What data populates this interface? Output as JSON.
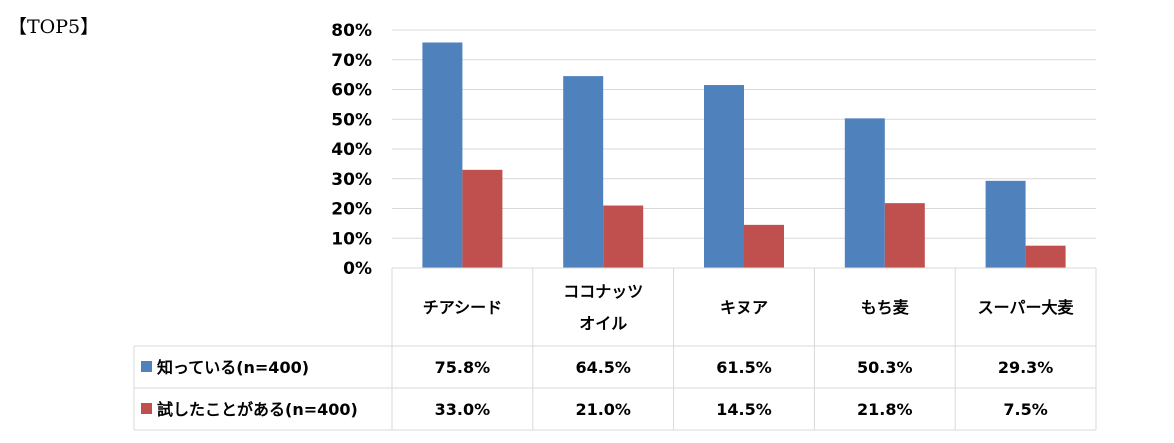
{
  "heading": "【TOP5】",
  "chart_data": {
    "type": "bar",
    "categories": [
      "チアシード",
      "ココナッツオイル",
      "キヌア",
      "もち麦",
      "スーパー大麦"
    ],
    "category_lines": [
      [
        "チアシード"
      ],
      [
        "ココナッツ",
        "オイル"
      ],
      [
        "キヌア"
      ],
      [
        "もち麦"
      ],
      [
        "スーパー大麦"
      ]
    ],
    "series": [
      {
        "name": "知っている(n=400)",
        "color": "#4F81BD",
        "values": [
          75.8,
          64.5,
          61.5,
          50.3,
          29.3
        ],
        "labels": [
          "75.8%",
          "64.5%",
          "61.5%",
          "50.3%",
          "29.3%"
        ]
      },
      {
        "name": "試したことがある(n=400)",
        "color": "#C0504D",
        "values": [
          33.0,
          21.0,
          14.5,
          21.8,
          7.5
        ],
        "labels": [
          "33.0%",
          "21.0%",
          "14.5%",
          "21.8%",
          "7.5%"
        ]
      }
    ],
    "ylim": [
      0,
      80
    ],
    "yticks": [
      "0%",
      "10%",
      "20%",
      "30%",
      "40%",
      "50%",
      "60%",
      "70%",
      "80%"
    ],
    "grid": true,
    "legend": "data-table",
    "title": "",
    "xlabel": "",
    "ylabel": ""
  }
}
